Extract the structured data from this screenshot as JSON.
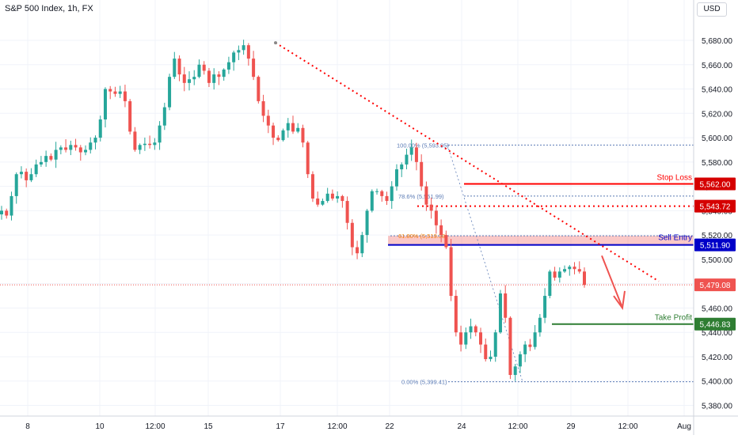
{
  "header": {
    "title": "S&P 500 Index, 1h, FX",
    "currency": "USD"
  },
  "colors": {
    "up": "#26a69a",
    "down": "#ef5350",
    "stop_loss": "#ff0000",
    "sell_entry": "#0000c8",
    "take_profit": "#2e7d32",
    "fib": "#5b7bb5",
    "trend": "#ff0000",
    "grid": "#f0f3fa"
  },
  "chart_data": {
    "type": "candlestick",
    "title": "S&P 500 Index, 1h, FX",
    "xlabel": "",
    "ylabel": "",
    "ylim": [
      5370,
      5700
    ],
    "x_ticks": [
      "8",
      "10",
      "12:00",
      "15",
      "17",
      "12:00",
      "22",
      "24",
      "12:00",
      "29",
      "12:00",
      "Aug"
    ],
    "y_ticks": [
      "5,380.00",
      "5,400.00",
      "5,420.00",
      "5,440.00",
      "5,460.00",
      "5,480.00",
      "5,500.00",
      "5,520.00",
      "5,540.00",
      "5,560.00",
      "5,580.00",
      "5,600.00",
      "5,620.00",
      "5,640.00",
      "5,660.00",
      "5,680.00"
    ],
    "path": [
      5540,
      5536,
      5552,
      5570,
      5572,
      5565,
      5570,
      5578,
      5580,
      5585,
      5582,
      5590,
      5592,
      5590,
      5594,
      5592,
      5588,
      5590,
      5596,
      5600,
      5615,
      5640,
      5638,
      5636,
      5638,
      5630,
      5605,
      5590,
      5594,
      5595,
      5594,
      5596,
      5610,
      5625,
      5650,
      5665,
      5652,
      5645,
      5648,
      5650,
      5660,
      5655,
      5645,
      5652,
      5650,
      5656,
      5662,
      5670,
      5672,
      5676,
      5665,
      5650,
      5630,
      5618,
      5610,
      5600,
      5598,
      5606,
      5612,
      5605,
      5608,
      5596,
      5570,
      5550,
      5545,
      5548,
      5554,
      5550,
      5552,
      5548,
      5530,
      5510,
      5505,
      5520,
      5540,
      5556,
      5556,
      5552,
      5548,
      5560,
      5574,
      5578,
      5586,
      5592,
      5580,
      5560,
      5545,
      5540,
      5528,
      5520,
      5510,
      5470,
      5440,
      5430,
      5440,
      5445,
      5440,
      5430,
      5418,
      5420,
      5440,
      5472,
      5452,
      5405,
      5412,
      5422,
      5430,
      5428,
      5440,
      5452,
      5470,
      5490,
      5485,
      5490,
      5492,
      5494,
      5492,
      5490,
      5479
    ],
    "price_labels": {
      "stop_loss": 5562.0,
      "stop_loss_text": "5,562.00",
      "level_2": 5543.72,
      "level_2_text": "5,543.72",
      "sell_entry": 5511.9,
      "sell_entry_text": "5,511.90",
      "current": 5479.08,
      "current_text": "5,479.08",
      "take_profit": 5446.83,
      "take_profit_text": "5,446.83"
    },
    "annotations": {
      "stop_loss": "Stop Loss",
      "sell_entry": "Sell Entry",
      "take_profit": "Take Profit"
    },
    "fib_levels": [
      {
        "label": "100.00% (5,593.95)",
        "value": 5593.95
      },
      {
        "label": "78.6% (5,551.99)",
        "value": 5551.99
      },
      {
        "label": "61.80% (5,519.38)",
        "value": 5519.38
      },
      {
        "label": "0.00% (5,399.41)",
        "value": 5399.41
      }
    ],
    "grid": true,
    "legend": "none"
  }
}
